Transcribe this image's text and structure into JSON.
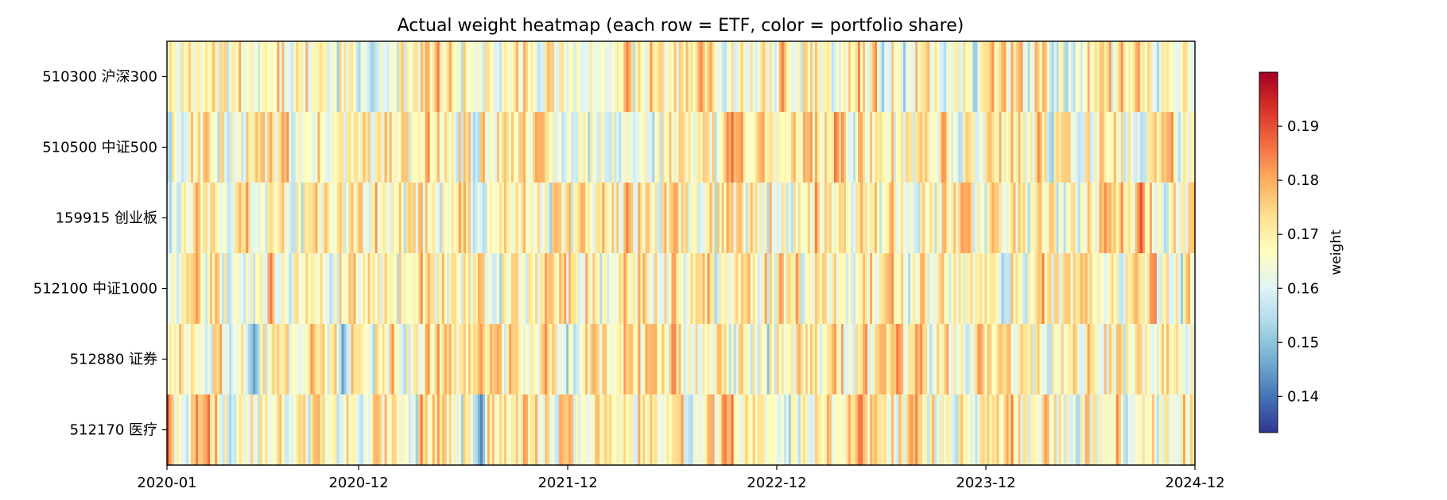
{
  "chart_data": {
    "type": "heatmap",
    "title": "Actual weight heatmap (each row = ETF, color = portfolio share)",
    "xlabel": "",
    "ylabel": "",
    "rows": [
      "510300 沪深300",
      "510500 中证500",
      "159915 创业板",
      "512100 中证1000",
      "512880 证券",
      "512170 医疗"
    ],
    "x_range": [
      "2020-01",
      "2024-12"
    ],
    "x_ticks": [
      "2020-01",
      "2020-12",
      "2021-12",
      "2022-12",
      "2023-12",
      "2024-12"
    ],
    "colormap": "RdYlBu_r",
    "colorbar": {
      "label": "weight",
      "vmin": 0.1333,
      "vmax": 0.2,
      "ticks": [
        "0.14",
        "0.15",
        "0.16",
        "0.17",
        "0.18",
        "0.19"
      ]
    },
    "baseline_weight": 0.1667,
    "notable_columns": [
      {
        "date": "2020-01",
        "row": "512170 医疗",
        "weight": 0.19
      },
      {
        "date": "2020-06",
        "row": "512880 证券",
        "weight": 0.145
      },
      {
        "date": "2020-11",
        "row": "512880 证券",
        "weight": 0.145
      },
      {
        "date": "2021-07",
        "row": "512170 医疗",
        "weight": 0.142
      },
      {
        "date": "2021-07",
        "row": "512880 证券",
        "weight": 0.182
      },
      {
        "date": "2022-09",
        "row": "512170 医疗",
        "weight": 0.185
      },
      {
        "date": "2022-09",
        "row": "510300 沪深300",
        "weight": 0.155
      },
      {
        "date": "2023-07",
        "row": "512880 证券",
        "weight": 0.185
      },
      {
        "date": "2024-01",
        "row": "512100 中证1000",
        "weight": 0.152
      },
      {
        "date": "2024-09",
        "row": "159915 创业板",
        "weight": 0.19
      },
      {
        "date": "2024-09",
        "row": "510500 中证500",
        "weight": 0.155
      }
    ]
  }
}
